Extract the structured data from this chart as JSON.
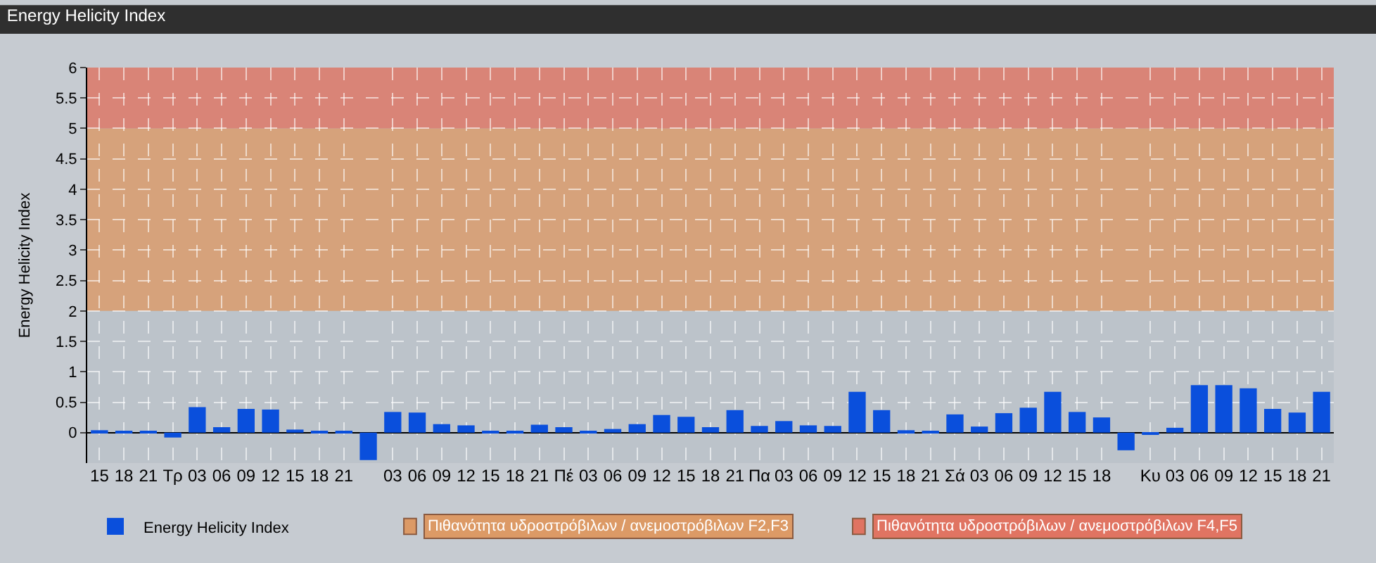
{
  "chart_data": {
    "type": "bar",
    "title": "Energy Helicity Index",
    "ylabel": "Energy Helicity Index",
    "categories": [
      "15",
      "18",
      "21",
      "Τρ",
      "03",
      "06",
      "09",
      "12",
      "15",
      "18",
      "21",
      null,
      "03",
      "06",
      "09",
      "12",
      "15",
      "18",
      "21",
      "Πέ",
      "03",
      "06",
      "09",
      "12",
      "15",
      "18",
      "21",
      "Πα",
      "03",
      "06",
      "09",
      "12",
      "15",
      "18",
      "21",
      "Σά",
      "03",
      "06",
      "09",
      "12",
      "15",
      "18",
      null,
      "Κυ",
      "03",
      "06",
      "09",
      "12",
      "15",
      "18",
      "21"
    ],
    "series": [
      {
        "name": "Energy Helicity Index",
        "color": "#0a4fdc",
        "values": [
          0.04,
          0.02,
          0.02,
          -0.08,
          0.42,
          0.09,
          0.39,
          0.38,
          0.05,
          0.02,
          0.02,
          -0.45,
          0.34,
          0.33,
          0.14,
          0.12,
          0.03,
          0.03,
          0.13,
          0.09,
          0.03,
          0.06,
          0.14,
          0.29,
          0.26,
          0.09,
          0.37,
          0.11,
          0.19,
          0.12,
          0.11,
          0.67,
          0.37,
          0.04,
          0.02,
          0.3,
          0.1,
          0.32,
          0.41,
          0.67,
          0.34,
          0.25,
          -0.29,
          -0.02,
          0.08,
          0.78,
          0.78,
          0.73,
          0.39,
          0.33,
          0.67
        ]
      }
    ],
    "ylim": [
      -0.5,
      6
    ],
    "yticks": [
      0,
      0.5,
      1,
      1.5,
      2,
      2.5,
      3,
      3.5,
      4,
      4.5,
      5,
      5.5,
      6
    ],
    "bands": [
      {
        "axis": "y",
        "from": 2,
        "to": 5,
        "label": "Πιθανότητα υδροστρόβιλων / ανεμοστρόβιλων F2,F3",
        "color": "#dc9a66"
      },
      {
        "axis": "y",
        "from": 5,
        "to": 6,
        "label": "Πιθανότητα υδροστρόβιλων / ανεμοστρόβιλων F4,F5",
        "color": "#e07462"
      }
    ],
    "grid": true,
    "legend": "bottom left"
  }
}
